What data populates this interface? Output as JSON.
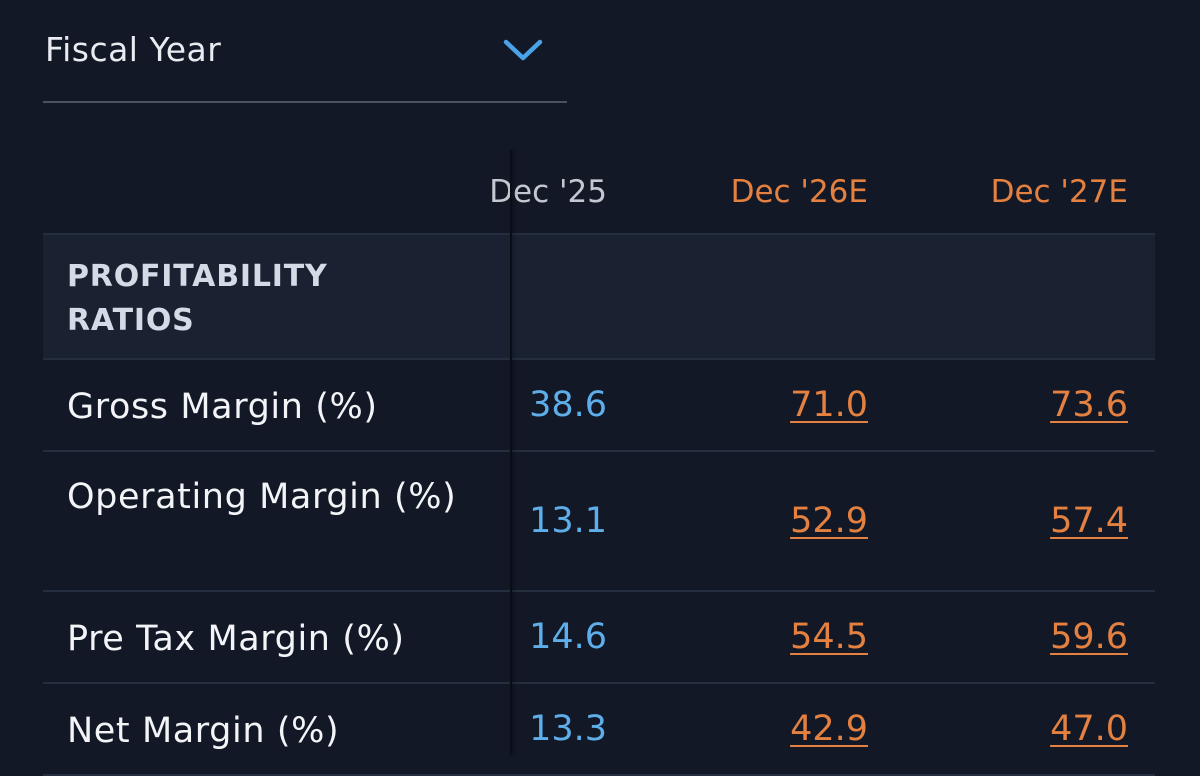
{
  "dropdown": {
    "label": "Fiscal Year"
  },
  "table": {
    "columns": [
      "Dec '25",
      "Dec '26E",
      "Dec '27E"
    ],
    "section": "PROFITABILITY RATIOS",
    "rows": [
      {
        "label": "Gross Margin (%)",
        "values": [
          "38.6",
          "71.0",
          "73.6"
        ]
      },
      {
        "label": "Operating Margin (%)",
        "values": [
          "13.1",
          "52.9",
          "57.4"
        ]
      },
      {
        "label": "Pre Tax Margin (%)",
        "values": [
          "14.6",
          "54.5",
          "59.6"
        ]
      },
      {
        "label": "Net Margin (%)",
        "values": [
          "13.3",
          "42.9",
          "47.0"
        ]
      }
    ]
  }
}
